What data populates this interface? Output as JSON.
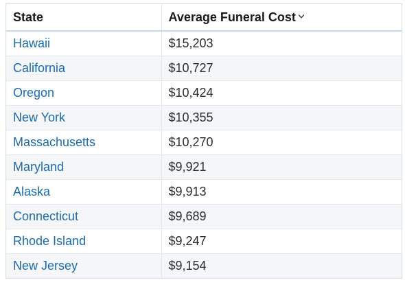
{
  "table": {
    "columns": {
      "state": "State",
      "cost": "Average Funeral Cost"
    },
    "sort_icon": "chevron-down-icon",
    "rows": [
      {
        "state": "Hawaii",
        "cost": "$15,203"
      },
      {
        "state": "California",
        "cost": "$10,727"
      },
      {
        "state": "Oregon",
        "cost": "$10,424"
      },
      {
        "state": "New York",
        "cost": "$10,355"
      },
      {
        "state": "Massachusetts",
        "cost": "$10,270"
      },
      {
        "state": "Maryland",
        "cost": "$9,921"
      },
      {
        "state": "Alaska",
        "cost": "$9,913"
      },
      {
        "state": "Connecticut",
        "cost": "$9,689"
      },
      {
        "state": "Rhode Island",
        "cost": "$9,247"
      },
      {
        "state": "New Jersey",
        "cost": "$9,154"
      }
    ],
    "colors": {
      "link_text": "#1a6bb0",
      "header_border": "#c7d9ea",
      "stripe": "#f5f6f7"
    }
  }
}
